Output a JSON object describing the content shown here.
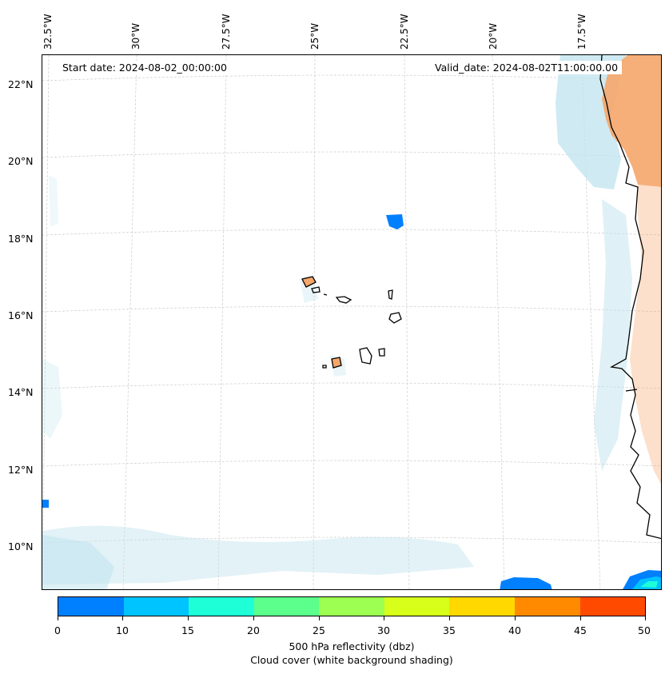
{
  "map": {
    "start_date": "Start date: 2024-08-02_00:00:00",
    "valid_date": "Valid_date: 2024-08-02T11:00:00.00",
    "lon_labels": [
      "32.5°W",
      "30°W",
      "27.5°W",
      "25°W",
      "22.5°W",
      "20°W",
      "17.5°W"
    ],
    "lat_labels": [
      "22°N",
      "20°N",
      "18°N",
      "16°N",
      "14°N",
      "12°N",
      "10°N"
    ]
  },
  "colorbar": {
    "ticks": [
      "0",
      "10",
      "15",
      "20",
      "25",
      "30",
      "35",
      "40",
      "45",
      "50"
    ],
    "colors": [
      "#0080ff",
      "#00c4ff",
      "#1effd8",
      "#5cff8c",
      "#9cff52",
      "#d8ff1a",
      "#ffd800",
      "#ff8a00",
      "#ff4a00"
    ],
    "label_line1": "500 hPa reflectivity (dbz)",
    "label_line2": "Cloud cover (white background shading)"
  },
  "palette": {
    "land": "#f5a66a",
    "cloud": "#bfe3ee",
    "echo": "#0080ff",
    "coast": "#000000"
  }
}
